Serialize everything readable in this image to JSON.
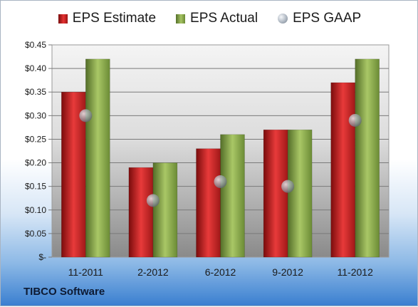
{
  "company": "TIBCO Software",
  "colors": {
    "estimate": "#d42222",
    "actual": "#8fb04a",
    "gaap": "#9aa3ad",
    "plot_bg_top": "#f3f3f3",
    "plot_bg_bottom": "#888888"
  },
  "chart_data": {
    "type": "bar",
    "categories": [
      "11-2011",
      "2-2012",
      "6-2012",
      "9-2012",
      "11-2012"
    ],
    "series": [
      {
        "name": "EPS Estimate",
        "kind": "bar",
        "values": [
          0.35,
          0.19,
          0.23,
          0.27,
          0.37
        ]
      },
      {
        "name": "EPS Actual",
        "kind": "bar",
        "values": [
          0.42,
          0.2,
          0.26,
          0.27,
          0.42
        ]
      },
      {
        "name": "EPS GAAP",
        "kind": "marker",
        "values": [
          0.3,
          0.12,
          0.16,
          0.15,
          0.29
        ]
      }
    ],
    "ylim": [
      0,
      0.45
    ],
    "yticks": [
      "$-",
      "$0.05",
      "$0.10",
      "$0.15",
      "$0.20",
      "$0.25",
      "$0.30",
      "$0.35",
      "$0.40",
      "$0.45"
    ],
    "grid": true,
    "legend": "top"
  }
}
